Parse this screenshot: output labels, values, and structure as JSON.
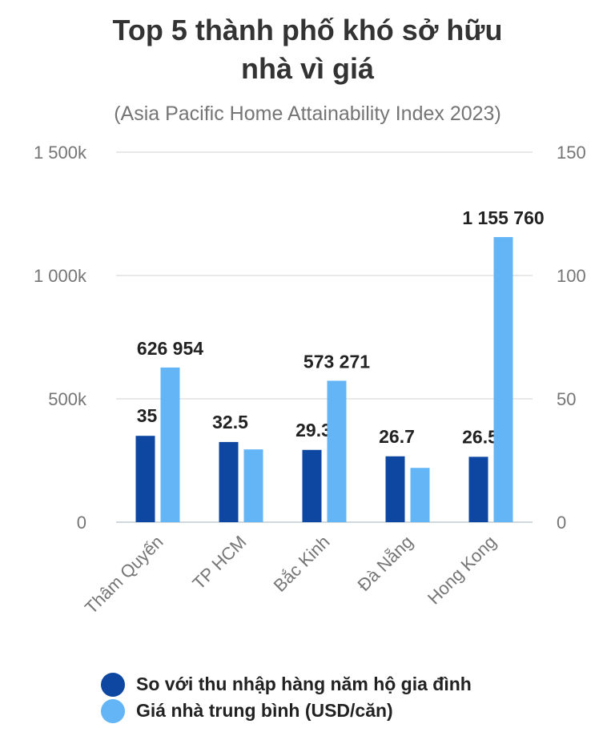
{
  "title_line1": "Top 5 thành phố khó sở hữu",
  "title_line2": "nhà vì giá",
  "subtitle": "(Asia Pacific Home Attainability Index 2023)",
  "colors": {
    "series1": "#0d47a1",
    "series2": "#64b5f6",
    "grid": "#e0e0e0",
    "axis": "#cfd8dc"
  },
  "chart_data": {
    "type": "bar",
    "categories": [
      "Thâm Quyến",
      "TP HCM",
      "Bắc Kinh",
      "Đà Nẵng",
      "Hong Kong"
    ],
    "series": [
      {
        "name": "So với thu nhập hàng năm hộ gia đình",
        "axis": "right",
        "values": [
          35,
          32.5,
          29.3,
          26.7,
          26.5
        ],
        "labels": [
          "35",
          "32.5",
          "29.3",
          "26.7",
          "26.5"
        ]
      },
      {
        "name": "Giá nhà trung bình (USD/căn)",
        "axis": "left",
        "values": [
          626954,
          295000,
          573271,
          220000,
          1155760
        ],
        "labels": [
          "626 954",
          "",
          "573 271",
          "",
          "1 155 760"
        ]
      }
    ],
    "y_left": {
      "ylim": [
        0,
        1500000
      ],
      "ticks": [
        0,
        500000,
        1000000,
        1500000
      ],
      "tick_labels": [
        "0",
        "500k",
        "1 000k",
        "1 500k"
      ]
    },
    "y_right": {
      "ylim": [
        0,
        150
      ],
      "ticks": [
        0,
        50,
        100,
        150
      ],
      "tick_labels": [
        "0",
        "50",
        "100",
        "150"
      ]
    },
    "grid": true,
    "legend_position": "bottom"
  }
}
